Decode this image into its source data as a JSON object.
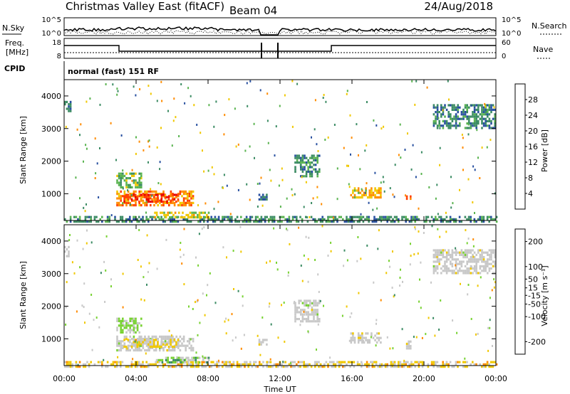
{
  "header": {
    "title": "Christmas Valley East (fitACF)",
    "beam": "Beam 04",
    "date": "24/Aug/2018"
  },
  "status_panel": {
    "nsky_label": "N.Sky",
    "nsky_ticks": [
      "10^5",
      "10^0"
    ],
    "nsearch_label": "N.Search",
    "nsearch_ticks": [
      "10^5",
      "10^0"
    ],
    "freq_label": "Freq.",
    "freq_unit": "[MHz]",
    "freq_ticks": [
      "18",
      "8"
    ],
    "nave_label": "Nave",
    "nave_ticks": [
      "60",
      "0"
    ],
    "cpid_label": "CPID",
    "cpid_value": "normal (fast) 151 RF"
  },
  "chart_data": [
    {
      "type": "heatmap",
      "title": "",
      "xlabel": "Time UT",
      "ylabel": "Slant Range [km]",
      "xlim": [
        0,
        24
      ],
      "ylim": [
        180,
        4500
      ],
      "x_ticks": [
        "00:00",
        "04:00",
        "08:00",
        "12:00",
        "16:00",
        "20:00",
        "00:00"
      ],
      "y_ticks": [
        1000,
        2000,
        3000,
        4000
      ],
      "colorbar": {
        "label": "Power [dB]",
        "range": [
          0,
          32
        ],
        "ticks": [
          4,
          8,
          12,
          16,
          20,
          24,
          28
        ],
        "colors": [
          "#0a1ee6",
          "#2850a0",
          "#3c8c64",
          "#5ab450",
          "#f0c800",
          "#ff8c00",
          "#ff4000",
          "#e60000"
        ]
      },
      "regions": [
        {
          "t0": 0.0,
          "t1": 24.0,
          "r0": 180,
          "r1": 320,
          "value": 10
        },
        {
          "t0": 2.9,
          "t1": 7.2,
          "r0": 640,
          "r1": 1100,
          "value": 22
        },
        {
          "t0": 3.3,
          "t1": 6.3,
          "r0": 730,
          "r1": 1000,
          "value": 27
        },
        {
          "t0": 2.9,
          "t1": 4.3,
          "r0": 1200,
          "r1": 1650,
          "value": 14
        },
        {
          "t0": 5.0,
          "t1": 8.0,
          "r0": 250,
          "r1": 450,
          "value": 17
        },
        {
          "t0": 0.0,
          "t1": 0.4,
          "r0": 3550,
          "r1": 3850,
          "value": 8
        },
        {
          "t0": 12.8,
          "t1": 14.2,
          "r0": 1550,
          "r1": 2200,
          "value": 10
        },
        {
          "t0": 15.9,
          "t1": 17.6,
          "r0": 880,
          "r1": 1200,
          "value": 19
        },
        {
          "t0": 19.0,
          "t1": 19.3,
          "r0": 700,
          "r1": 950,
          "value": 22
        },
        {
          "t0": 20.5,
          "t1": 24.0,
          "r0": 3000,
          "r1": 3750,
          "value": 9
        },
        {
          "t0": 10.8,
          "t1": 11.3,
          "r0": 800,
          "r1": 1000,
          "value": 8
        }
      ]
    },
    {
      "type": "heatmap",
      "title": "",
      "xlabel": "Time UT",
      "ylabel": "Slant Range [km]",
      "xlim": [
        0,
        24
      ],
      "ylim": [
        180,
        4500
      ],
      "x_ticks": [
        "00:00",
        "04:00",
        "08:00",
        "12:00",
        "16:00",
        "20:00",
        "00:00"
      ],
      "y_ticks": [
        1000,
        2000,
        3000,
        4000
      ],
      "colorbar": {
        "label": "Velocity [m s⁻¹]",
        "range": [
          -250,
          250
        ],
        "ticks": [
          -200,
          -100,
          -50,
          -15,
          15,
          50,
          100,
          200
        ],
        "colors": [
          "#e60000",
          "#ff4000",
          "#ff8c00",
          "#f0c800",
          "#c8c8c8",
          "#78d232",
          "#3c8c64",
          "#2850a0",
          "#0a1ee6"
        ]
      },
      "regions": [
        {
          "t0": 0.0,
          "t1": 24.0,
          "r0": 180,
          "r1": 320,
          "value": -60
        },
        {
          "t0": 2.9,
          "t1": 7.2,
          "r0": 640,
          "r1": 1100,
          "value": 0
        },
        {
          "t0": 3.3,
          "t1": 6.3,
          "r0": 730,
          "r1": 1000,
          "value": -30
        },
        {
          "t0": 2.9,
          "t1": 4.3,
          "r0": 1200,
          "r1": 1650,
          "value": 40
        },
        {
          "t0": 5.0,
          "t1": 8.0,
          "r0": 250,
          "r1": 450,
          "value": 30
        },
        {
          "t0": 0.0,
          "t1": 0.4,
          "r0": 3550,
          "r1": 3850,
          "value": 0
        },
        {
          "t0": 12.8,
          "t1": 14.2,
          "r0": 1550,
          "r1": 2200,
          "value": 0
        },
        {
          "t0": 15.9,
          "t1": 17.6,
          "r0": 880,
          "r1": 1200,
          "value": 0
        },
        {
          "t0": 19.0,
          "t1": 19.3,
          "r0": 700,
          "r1": 950,
          "value": 0
        },
        {
          "t0": 20.5,
          "t1": 24.0,
          "r0": 3000,
          "r1": 3750,
          "value": 0
        },
        {
          "t0": 10.8,
          "t1": 11.3,
          "r0": 800,
          "r1": 1000,
          "value": 0
        }
      ]
    }
  ]
}
